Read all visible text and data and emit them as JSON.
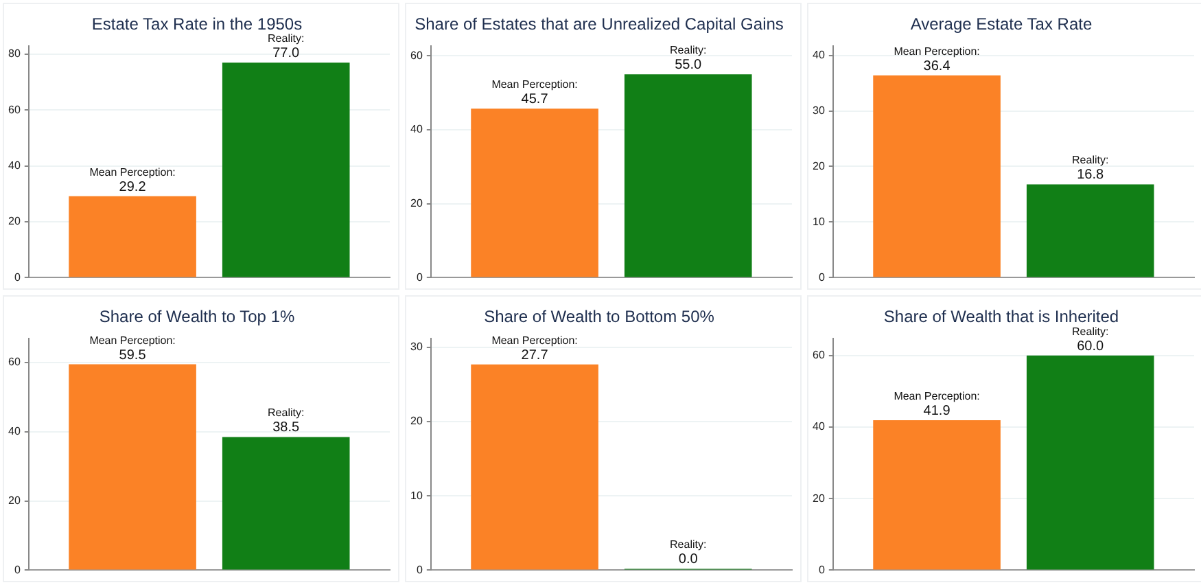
{
  "chart_data": [
    {
      "type": "bar",
      "title": "Estate Tax Rate in the 1950s",
      "categories": [
        null
      ],
      "ylim": [
        0,
        83
      ],
      "yticks": [
        0,
        20,
        40,
        60,
        80
      ],
      "grid": "y",
      "legend": false,
      "tick_labels": "y",
      "series": [
        {
          "name": "Mean Perception:",
          "color": "#fb8226",
          "values": [
            29.2
          ],
          "value_labels": [
            "29.2"
          ]
        },
        {
          "name": "Reality:",
          "color": "#117f16",
          "values": [
            77
          ],
          "value_labels": [
            "77.0"
          ]
        }
      ]
    },
    {
      "type": "bar",
      "title": "Share of Estates that are Unrealized Capital Gains",
      "categories": [
        null
      ],
      "ylim": [
        0,
        62.7
      ],
      "yticks": [
        0,
        20,
        40,
        60
      ],
      "grid": "y",
      "legend": false,
      "tick_labels": "y",
      "series": [
        {
          "name": "Mean Perception:",
          "color": "#fb8226",
          "values": [
            45.7
          ],
          "value_labels": [
            "45.7"
          ]
        },
        {
          "name": "Reality:",
          "color": "#117f16",
          "values": [
            55
          ],
          "value_labels": [
            "55.0"
          ]
        }
      ]
    },
    {
      "type": "bar",
      "title": "Average Estate Tax Rate",
      "categories": [
        null
      ],
      "ylim": [
        0,
        41.7
      ],
      "yticks": [
        0,
        10,
        20,
        30,
        40
      ],
      "grid": "y",
      "legend": false,
      "tick_labels": "y",
      "series": [
        {
          "name": "Mean Perception:",
          "color": "#fb8226",
          "values": [
            36.4
          ],
          "value_labels": [
            "36.4"
          ]
        },
        {
          "name": "Reality:",
          "color": "#117f16",
          "values": [
            16.8
          ],
          "value_labels": [
            "16.8"
          ]
        }
      ]
    },
    {
      "type": "bar",
      "title": "Share of Wealth to Top 1%",
      "categories": [
        null
      ],
      "ylim": [
        0,
        67
      ],
      "yticks": [
        0,
        20,
        40,
        60
      ],
      "grid": "y",
      "legend": false,
      "tick_labels": "y",
      "series": [
        {
          "name": "Mean Perception:",
          "color": "#fb8226",
          "values": [
            59.5
          ],
          "value_labels": [
            "59.5"
          ]
        },
        {
          "name": "Reality:",
          "color": "#117f16",
          "values": [
            38.5
          ],
          "value_labels": [
            "38.5"
          ]
        }
      ]
    },
    {
      "type": "bar",
      "title": "Share of Wealth to Bottom 50%",
      "categories": [
        null
      ],
      "ylim": [
        0,
        31.2
      ],
      "yticks": [
        0,
        10,
        20,
        30
      ],
      "grid": "y",
      "legend": false,
      "tick_labels": "y",
      "series": [
        {
          "name": "Mean Perception:",
          "color": "#fb8226",
          "values": [
            27.7
          ],
          "value_labels": [
            "27.7"
          ]
        },
        {
          "name": "Reality:",
          "color": "#117f16",
          "values": [
            0
          ],
          "value_labels": [
            "0.0"
          ]
        }
      ]
    },
    {
      "type": "bar",
      "title": "Share of Wealth that is Inherited",
      "categories": [
        null
      ],
      "ylim": [
        0,
        64.8
      ],
      "yticks": [
        0,
        20,
        40,
        60
      ],
      "grid": "y",
      "legend": false,
      "tick_labels": "y",
      "series": [
        {
          "name": "Mean Perception:",
          "color": "#fb8226",
          "values": [
            41.9
          ],
          "value_labels": [
            "41.9"
          ]
        },
        {
          "name": "Reality:",
          "color": "#117f16",
          "values": [
            60
          ],
          "value_labels": [
            "60.0"
          ]
        }
      ]
    }
  ]
}
